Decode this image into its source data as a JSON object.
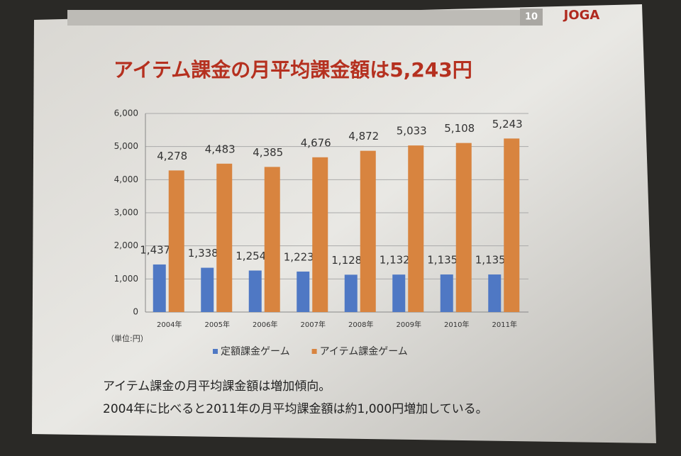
{
  "slide": {
    "page_number": "10",
    "logo": "JOGA"
  },
  "chart_data": {
    "type": "bar",
    "title": "アイテム課金の月平均課金額は5,243円",
    "unit_label": "（単位:円）",
    "notes": [
      "アイテム課金の月平均課金額は増加傾向。",
      "2004年に比べると2011年の月平均課金額は約1,000円増加している。"
    ],
    "categories": [
      "2004年",
      "2005年",
      "2006年",
      "2007年",
      "2008年",
      "2009年",
      "2010年",
      "2011年"
    ],
    "series": [
      {
        "name": "定額課金ゲーム",
        "color": "#4f78c4",
        "values": [
          1437,
          1338,
          1254,
          1223,
          1128,
          1132,
          1135,
          1135
        ],
        "value_labels": [
          "1,437",
          "1,338",
          "1,254",
          "1,223",
          "1,128",
          "1,132",
          "1,135",
          "1,135"
        ]
      },
      {
        "name": "アイテム課金ゲーム",
        "color": "#d8843f",
        "values": [
          4278,
          4483,
          4385,
          4676,
          4872,
          5033,
          5108,
          5243
        ],
        "value_labels": [
          "4,278",
          "4,483",
          "4,385",
          "4,676",
          "4,872",
          "5,033",
          "5,108",
          "5,243"
        ]
      }
    ],
    "ylim": [
      0,
      6000
    ],
    "yticks": [
      0,
      {
        "value": 1000,
        "label": "1,000"
      },
      {
        "value": 2000,
        "label": "2,000"
      },
      {
        "value": 3000,
        "label": "3,000"
      },
      {
        "value": 4000,
        "label": "4,000"
      },
      {
        "value": 5000,
        "label": "5,000"
      },
      {
        "value": 6000,
        "label": "6,000"
      }
    ],
    "grid": true
  }
}
